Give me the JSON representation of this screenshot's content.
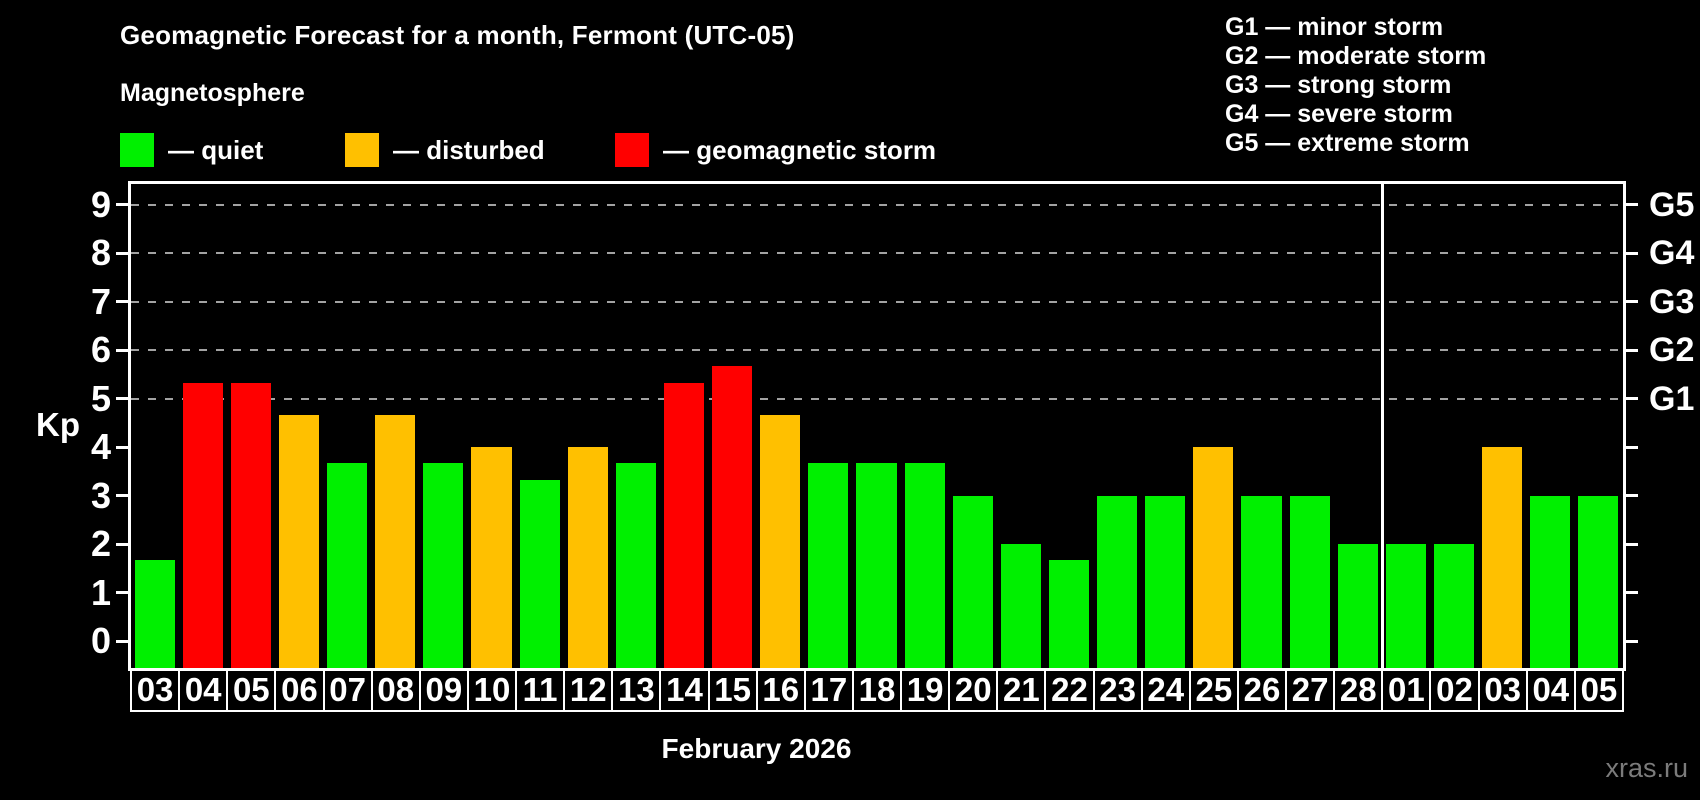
{
  "title": "Geomagnetic Forecast for a month, Fermont (UTC-05)",
  "watermark": "xras.ru",
  "legend": {
    "title": "Magnetosphere",
    "items": [
      {
        "key": "quiet",
        "label": "— quiet",
        "color": "#00f000"
      },
      {
        "key": "disturbed",
        "label": "— disturbed",
        "color": "#ffc000"
      },
      {
        "key": "storm",
        "label": "— geomagnetic storm",
        "color": "#ff0000"
      }
    ]
  },
  "g_legend": {
    "items": [
      "G1 — minor storm",
      "G2 — moderate storm",
      "G3 — strong storm",
      "G4 — severe storm",
      "G5 — extreme storm"
    ]
  },
  "chart_data": {
    "type": "bar",
    "title": "Geomagnetic Forecast for a month, Fermont (UTC-05)",
    "xlabel": "February 2026",
    "ylabel": "Kp",
    "ylim": [
      -0.55,
      9.43
    ],
    "yticks": [
      0,
      1,
      2,
      3,
      4,
      5,
      6,
      7,
      8,
      9
    ],
    "grid_kp": [
      5,
      6,
      7,
      8,
      9
    ],
    "grid_style": "dashed",
    "legend_position": "top",
    "right_axis": [
      {
        "kp": 5,
        "label": "G1"
      },
      {
        "kp": 6,
        "label": "G2"
      },
      {
        "kp": 7,
        "label": "G3"
      },
      {
        "kp": 8,
        "label": "G4"
      },
      {
        "kp": 9,
        "label": "G5"
      }
    ],
    "month_separator_after": 26,
    "days": [
      {
        "day": "03",
        "kp": 1.67,
        "status": "quiet"
      },
      {
        "day": "04",
        "kp": 5.33,
        "status": "storm"
      },
      {
        "day": "05",
        "kp": 5.33,
        "status": "storm"
      },
      {
        "day": "06",
        "kp": 4.67,
        "status": "disturbed"
      },
      {
        "day": "07",
        "kp": 3.67,
        "status": "quiet"
      },
      {
        "day": "08",
        "kp": 4.67,
        "status": "disturbed"
      },
      {
        "day": "09",
        "kp": 3.67,
        "status": "quiet"
      },
      {
        "day": "10",
        "kp": 4.0,
        "status": "disturbed"
      },
      {
        "day": "11",
        "kp": 3.33,
        "status": "quiet"
      },
      {
        "day": "12",
        "kp": 4.0,
        "status": "disturbed"
      },
      {
        "day": "13",
        "kp": 3.67,
        "status": "quiet"
      },
      {
        "day": "14",
        "kp": 5.33,
        "status": "storm"
      },
      {
        "day": "15",
        "kp": 5.67,
        "status": "storm"
      },
      {
        "day": "16",
        "kp": 4.67,
        "status": "disturbed"
      },
      {
        "day": "17",
        "kp": 3.67,
        "status": "quiet"
      },
      {
        "day": "18",
        "kp": 3.67,
        "status": "quiet"
      },
      {
        "day": "19",
        "kp": 3.67,
        "status": "quiet"
      },
      {
        "day": "20",
        "kp": 3.0,
        "status": "quiet"
      },
      {
        "day": "21",
        "kp": 2.0,
        "status": "quiet"
      },
      {
        "day": "22",
        "kp": 1.67,
        "status": "quiet"
      },
      {
        "day": "23",
        "kp": 3.0,
        "status": "quiet"
      },
      {
        "day": "24",
        "kp": 3.0,
        "status": "quiet"
      },
      {
        "day": "25",
        "kp": 4.0,
        "status": "disturbed"
      },
      {
        "day": "26",
        "kp": 3.0,
        "status": "quiet"
      },
      {
        "day": "27",
        "kp": 3.0,
        "status": "quiet"
      },
      {
        "day": "28",
        "kp": 2.0,
        "status": "quiet"
      },
      {
        "day": "01",
        "kp": 2.0,
        "status": "quiet"
      },
      {
        "day": "02",
        "kp": 2.0,
        "status": "quiet"
      },
      {
        "day": "03",
        "kp": 4.0,
        "status": "disturbed"
      },
      {
        "day": "04",
        "kp": 3.0,
        "status": "quiet"
      },
      {
        "day": "05",
        "kp": 3.0,
        "status": "quiet"
      }
    ]
  }
}
